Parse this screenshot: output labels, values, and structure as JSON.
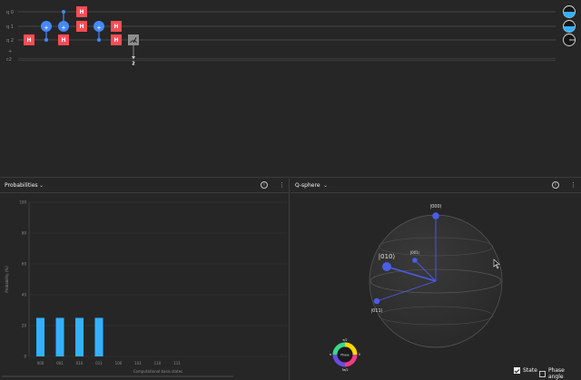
{
  "circuit": {
    "qubits": [
      "q 0",
      "q 1",
      "q 2"
    ],
    "classical": {
      "label": "c2",
      "plus": "+"
    },
    "gate_labels": {
      "hadamard": "H",
      "cnot": "+"
    },
    "measure_target": "2",
    "colors": {
      "hadamard": "#fa4d56",
      "cnot": "#4589ff",
      "measure": "#8d8d8d"
    }
  },
  "probabilities": {
    "title": "Probabilities",
    "menu_icon": "kebab-icon",
    "info_icon": "info-icon",
    "chart_data": {
      "type": "bar",
      "categories": [
        "000",
        "001",
        "010",
        "011",
        "100",
        "101",
        "110",
        "111"
      ],
      "values": [
        25,
        25,
        25,
        25,
        0,
        0,
        0,
        0
      ],
      "xlabel": "Computational basis states",
      "ylabel": "Probability (%)",
      "ylim": [
        0,
        100
      ],
      "yticks": [
        "0",
        "20",
        "40",
        "60",
        "80",
        "100"
      ],
      "grid": true,
      "bar_color": "#33b1ff"
    }
  },
  "qsphere": {
    "title": "Q-sphere",
    "states": [
      "|000⟩",
      "|001⟩",
      "|010⟩",
      "|011⟩"
    ],
    "phase_wheel": {
      "center": "Phase",
      "top": "π/2",
      "bottom": "3π/2",
      "left": "π",
      "right": "0"
    },
    "state_color": "#4a5de8"
  },
  "options": {
    "state_label": "State",
    "phase_label": "Phase angle",
    "state_checked": true,
    "phase_checked": false
  }
}
